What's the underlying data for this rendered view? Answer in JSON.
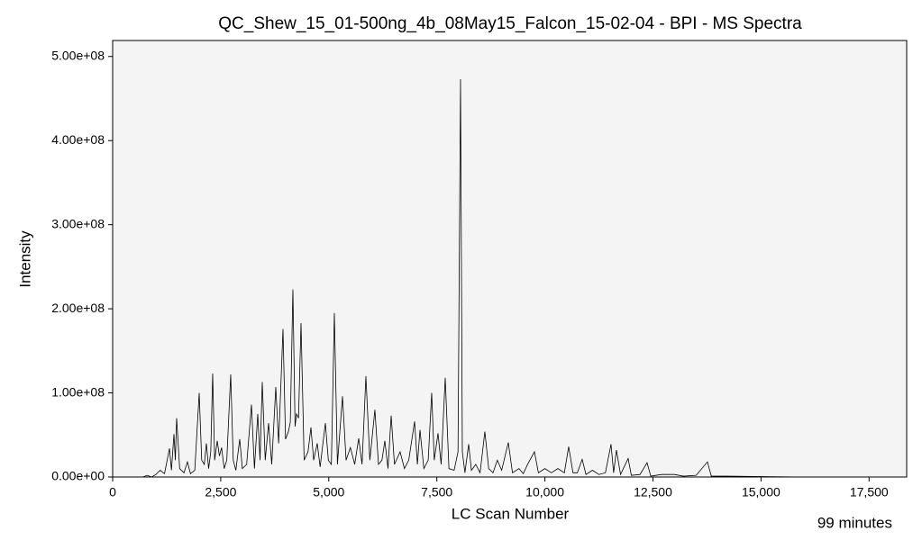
{
  "chart_data": {
    "type": "line",
    "title": "QC_Shew_15_01-500ng_4b_08May15_Falcon_15-02-04 - BPI - MS Spectra",
    "x_label": "LC Scan Number",
    "y_label": "Intensity",
    "annotation": "99 minutes",
    "xlim": [
      0,
      18370
    ],
    "ylim": [
      0,
      519000000.0
    ],
    "xticks": [
      0,
      {
        "value": 2500,
        "label": "2,500"
      },
      {
        "value": 5000,
        "label": "5,000"
      },
      {
        "value": 7500,
        "label": "7,500"
      },
      {
        "value": 10000,
        "label": "10,000"
      },
      {
        "value": 12500,
        "label": "12,500"
      },
      {
        "value": 15000,
        "label": "15,000"
      },
      {
        "value": 17500,
        "label": "17,500"
      }
    ],
    "yticks": [
      {
        "value": 0,
        "label": "0.00e+00"
      },
      {
        "value": 100000000,
        "label": "1.00e+08"
      },
      {
        "value": 200000000,
        "label": "2.00e+08"
      },
      {
        "value": 300000000,
        "label": "3.00e+08"
      },
      {
        "value": 400000000,
        "label": "4.00e+08"
      },
      {
        "value": 500000000,
        "label": "5.00e+08"
      }
    ],
    "color": "#000000",
    "x": [
      0,
      700,
      800,
      900,
      1000,
      1100,
      1200,
      1314,
      1360,
      1418,
      1450,
      1480,
      1550,
      1650,
      1730,
      1800,
      1900,
      2002,
      2060,
      2120,
      2168,
      2220,
      2270,
      2314,
      2360,
      2419,
      2470,
      2520,
      2580,
      2640,
      2731,
      2790,
      2850,
      2940,
      3000,
      3100,
      3211,
      3280,
      3357,
      3410,
      3461,
      3530,
      3607,
      3680,
      3774,
      3840,
      3941,
      4000,
      4066,
      4110,
      4170,
      4220,
      4253,
      4300,
      4358,
      4430,
      4520,
      4587,
      4650,
      4733,
      4800,
      4921,
      4990,
      5060,
      5129,
      5200,
      5317,
      5400,
      5500,
      5600,
      5692,
      5770,
      5859,
      5950,
      6067,
      6150,
      6230,
      6297,
      6370,
      6443,
      6520,
      6650,
      6750,
      6850,
      6985,
      7050,
      7110,
      7200,
      7300,
      7381,
      7440,
      7527,
      7600,
      7694,
      7780,
      7900,
      7990,
      8048,
      8090,
      8150,
      8236,
      8300,
      8400,
      8500,
      8611,
      8700,
      8800,
      8900,
      9000,
      9153,
      9250,
      9400,
      9500,
      9600,
      9758,
      9850,
      10000,
      10150,
      10300,
      10450,
      10550,
      10650,
      10750,
      10863,
      10950,
      11100,
      11250,
      11400,
      11530,
      11590,
      11655,
      11750,
      11926,
      12000,
      12200,
      12364,
      12450,
      12700,
      13000,
      13200,
      13500,
      13761,
      13850,
      14200,
      15000,
      16000,
      18000
    ],
    "values": [
      0,
      0,
      2000000.0,
      0,
      3000000.0,
      8000000.0,
      4000000.0,
      34000000.0,
      8000000.0,
      51000000.0,
      20000000.0,
      70000000.0,
      10000000.0,
      5000000.0,
      18000000.0,
      4000000.0,
      8000000.0,
      100000000.0,
      20000000.0,
      15000000.0,
      40000000.0,
      10000000.0,
      30000000.0,
      123000000.0,
      20000000.0,
      43000000.0,
      25000000.0,
      35000000.0,
      10000000.0,
      20000000.0,
      122000000.0,
      20000000.0,
      8000000.0,
      45000000.0,
      10000000.0,
      15000000.0,
      86000000.0,
      10000000.0,
      75000000.0,
      20000000.0,
      113000000.0,
      20000000.0,
      64000000.0,
      15000000.0,
      107000000.0,
      40000000.0,
      176000000.0,
      45000000.0,
      54000000.0,
      65000000.0,
      223000000.0,
      60000000.0,
      75000000.0,
      70000000.0,
      183000000.0,
      20000000.0,
      30000000.0,
      59000000.0,
      20000000.0,
      40000000.0,
      12000000.0,
      64000000.0,
      20000000.0,
      15000000.0,
      195000000.0,
      15000000.0,
      96000000.0,
      20000000.0,
      35000000.0,
      15000000.0,
      46000000.0,
      15000000.0,
      120000000.0,
      20000000.0,
      80000000.0,
      15000000.0,
      20000000.0,
      43000000.0,
      10000000.0,
      73000000.0,
      15000000.0,
      30000000.0,
      10000000.0,
      20000000.0,
      66000000.0,
      15000000.0,
      56000000.0,
      10000000.0,
      20000000.0,
      100000000.0,
      20000000.0,
      52000000.0,
      15000000.0,
      118000000.0,
      10000000.0,
      8000000.0,
      30000000.0,
      473000000.0,
      30000000.0,
      5000000.0,
      39000000.0,
      8000000.0,
      15000000.0,
      5000000.0,
      54000000.0,
      10000000.0,
      5000000.0,
      20000000.0,
      8000000.0,
      41000000.0,
      5000000.0,
      10000000.0,
      4000000.0,
      15000000.0,
      30000000.0,
      5000000.0,
      10000000.0,
      5000000.0,
      10000000.0,
      5000000.0,
      36000000.0,
      5000000.0,
      5000000.0,
      21000000.0,
      3000000.0,
      8000000.0,
      3000000.0,
      5000000.0,
      39000000.0,
      5000000.0,
      32000000.0,
      3000000.0,
      22000000.0,
      2000000.0,
      3000000.0,
      17000000.0,
      1000000.0,
      3000000.0,
      3000000.0,
      1000000.0,
      2000000.0,
      18000000.0,
      1000000.0,
      1000000.0,
      500000.0,
      0,
      0
    ]
  }
}
